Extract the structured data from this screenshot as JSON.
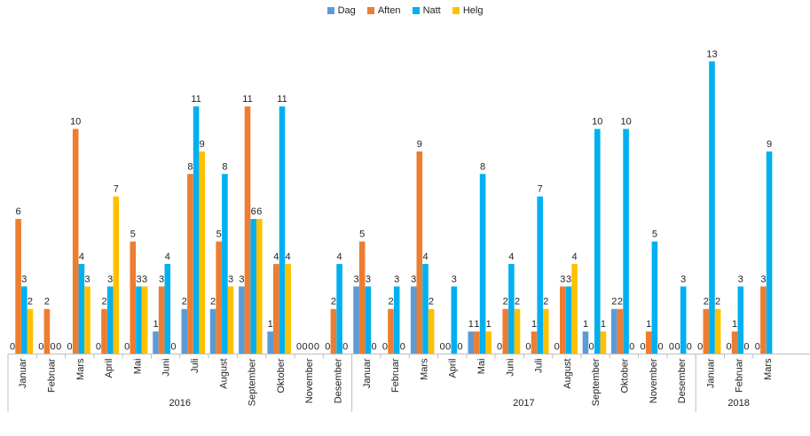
{
  "chart_data": {
    "type": "bar",
    "title": "",
    "legend": {
      "position": "top"
    },
    "grid": false,
    "ylim": [
      0,
      13
    ],
    "categories": [
      {
        "month": "Januar",
        "year": "2016"
      },
      {
        "month": "Februar",
        "year": "2016"
      },
      {
        "month": "Mars",
        "year": "2016"
      },
      {
        "month": "April",
        "year": "2016"
      },
      {
        "month": "Mai",
        "year": "2016"
      },
      {
        "month": "Juni",
        "year": "2016"
      },
      {
        "month": "Juli",
        "year": "2016"
      },
      {
        "month": "August",
        "year": "2016"
      },
      {
        "month": "September",
        "year": "2016"
      },
      {
        "month": "Oktober",
        "year": "2016"
      },
      {
        "month": "November",
        "year": "2016"
      },
      {
        "month": "Desember",
        "year": "2016"
      },
      {
        "month": "Januar",
        "year": "2017"
      },
      {
        "month": "Februar",
        "year": "2017"
      },
      {
        "month": "Mars",
        "year": "2017"
      },
      {
        "month": "April",
        "year": "2017"
      },
      {
        "month": "Mai",
        "year": "2017"
      },
      {
        "month": "Juni",
        "year": "2017"
      },
      {
        "month": "Juli",
        "year": "2017"
      },
      {
        "month": "August",
        "year": "2017"
      },
      {
        "month": "September",
        "year": "2017"
      },
      {
        "month": "Oktober",
        "year": "2017"
      },
      {
        "month": "November",
        "year": "2017"
      },
      {
        "month": "Desember",
        "year": "2017"
      },
      {
        "month": "Januar",
        "year": "2018"
      },
      {
        "month": "Februar",
        "year": "2018"
      },
      {
        "month": "Mars",
        "year": "2018"
      }
    ],
    "years": [
      "2016",
      "2017",
      "2018"
    ],
    "series": [
      {
        "name": "Dag",
        "color": "#5b9bd5",
        "values": [
          0,
          0,
          0,
          0,
          0,
          1,
          2,
          2,
          3,
          1,
          0,
          0,
          3,
          0,
          3,
          0,
          1,
          0,
          0,
          0,
          1,
          2,
          0,
          0,
          0,
          0,
          0
        ]
      },
      {
        "name": "Aften",
        "color": "#ed7d31",
        "values": [
          6,
          2,
          10,
          2,
          5,
          3,
          8,
          5,
          11,
          4,
          0,
          2,
          5,
          2,
          9,
          0,
          1,
          2,
          1,
          3,
          0,
          2,
          1,
          0,
          2,
          1,
          3
        ]
      },
      {
        "name": "Natt",
        "color": "#00b0f0",
        "values": [
          3,
          0,
          4,
          3,
          3,
          4,
          11,
          8,
          6,
          11,
          0,
          4,
          3,
          3,
          4,
          3,
          8,
          4,
          7,
          3,
          10,
          10,
          5,
          3,
          13,
          3,
          9
        ]
      },
      {
        "name": "Helg",
        "color": "#ffc000",
        "values": [
          2,
          0,
          3,
          7,
          3,
          0,
          9,
          3,
          6,
          4,
          0,
          0,
          0,
          0,
          2,
          0,
          1,
          2,
          2,
          4,
          1,
          0,
          0,
          0,
          2,
          0,
          null
        ]
      }
    ]
  }
}
